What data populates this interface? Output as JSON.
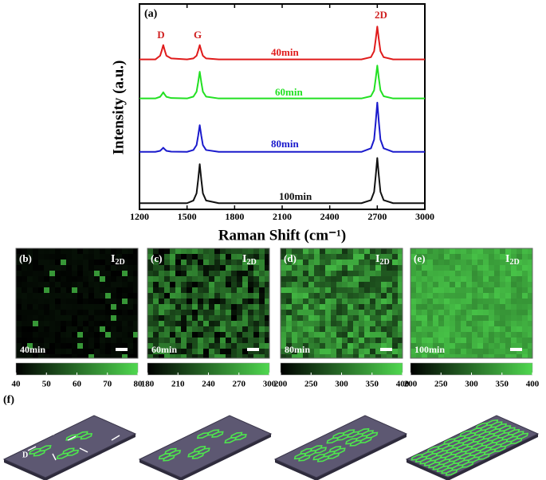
{
  "chart_data": {
    "type": "line",
    "panel_label": "(a)",
    "xlabel": "Raman Shift (cm⁻¹)",
    "ylabel": "Intensity (a.u.)",
    "xlim": [
      1200,
      3000
    ],
    "xticks": [
      1200,
      1500,
      1800,
      2100,
      2400,
      2700,
      3000
    ],
    "ylim": [
      0,
      100
    ],
    "annotations": [
      "D",
      "G",
      "2D"
    ],
    "x": [
      1200,
      1300,
      1330,
      1340,
      1350,
      1360,
      1370,
      1400,
      1500,
      1540,
      1560,
      1570,
      1580,
      1590,
      1600,
      1620,
      1700,
      2000,
      2400,
      2600,
      2660,
      2680,
      2690,
      2700,
      2710,
      2720,
      2740,
      2800,
      3000
    ],
    "series": [
      {
        "name": "40min",
        "color": "#e01b1b",
        "values": [
          73,
          73,
          74.8,
          77.2,
          80,
          77.2,
          74.8,
          73.5,
          73,
          73.5,
          74.8,
          77.2,
          80,
          77.2,
          74.8,
          73.5,
          73,
          73,
          73,
          73,
          74.1,
          77,
          82.6,
          89,
          82.6,
          77,
          74.1,
          73,
          73
        ]
      },
      {
        "name": "60min",
        "color": "#22e022",
        "values": [
          54,
          54,
          54.8,
          55.8,
          57,
          55.8,
          54.8,
          54.2,
          54,
          54.9,
          57.3,
          61.8,
          67,
          61.8,
          57.3,
          54.9,
          54,
          54,
          54,
          54,
          55.1,
          58,
          63.6,
          70,
          63.6,
          58,
          55.1,
          54,
          54
        ]
      },
      {
        "name": "80min",
        "color": "#1a1acc",
        "values": [
          28,
          28,
          28.5,
          29.2,
          30,
          29.2,
          28.5,
          28.1,
          28,
          28.9,
          31.3,
          35.8,
          41,
          35.8,
          31.3,
          28.9,
          28,
          28,
          28,
          28,
          29.7,
          34,
          42.4,
          52,
          42.4,
          34,
          29.7,
          28,
          28
        ]
      },
      {
        "name": "100min",
        "color": "#111111",
        "values": [
          3,
          3,
          3,
          3,
          3,
          3,
          3,
          3,
          3,
          4.3,
          7.8,
          14.4,
          22,
          14.4,
          7.8,
          4.3,
          3,
          3,
          3,
          3,
          4.5,
          8.5,
          16.2,
          25,
          16.2,
          8.5,
          4.5,
          3,
          3
        ]
      }
    ]
  },
  "maps": [
    {
      "label": "(b)",
      "intensity": {
        "main": "I",
        "sub": "2D"
      },
      "time": "40min",
      "clim": [
        40,
        80
      ],
      "colorbar_ticks": [
        40,
        50,
        60,
        70,
        80
      ]
    },
    {
      "label": "(c)",
      "intensity": {
        "main": "I",
        "sub": "2D"
      },
      "time": "60min",
      "clim": [
        180,
        300
      ],
      "colorbar_ticks": [
        180,
        210,
        240,
        270,
        300
      ]
    },
    {
      "label": "(d)",
      "intensity": {
        "main": "I",
        "sub": "2D"
      },
      "time": "80min",
      "clim": [
        200,
        400
      ],
      "colorbar_ticks": [
        200,
        250,
        300,
        350,
        400
      ]
    },
    {
      "label": "(e)",
      "intensity": {
        "main": "I",
        "sub": "2D"
      },
      "time": "100min",
      "clim": [
        200,
        400
      ],
      "colorbar_ticks": [
        200,
        250,
        300,
        350,
        400
      ]
    }
  ],
  "schematic": {
    "label": "(f)",
    "defect_label": "D"
  }
}
